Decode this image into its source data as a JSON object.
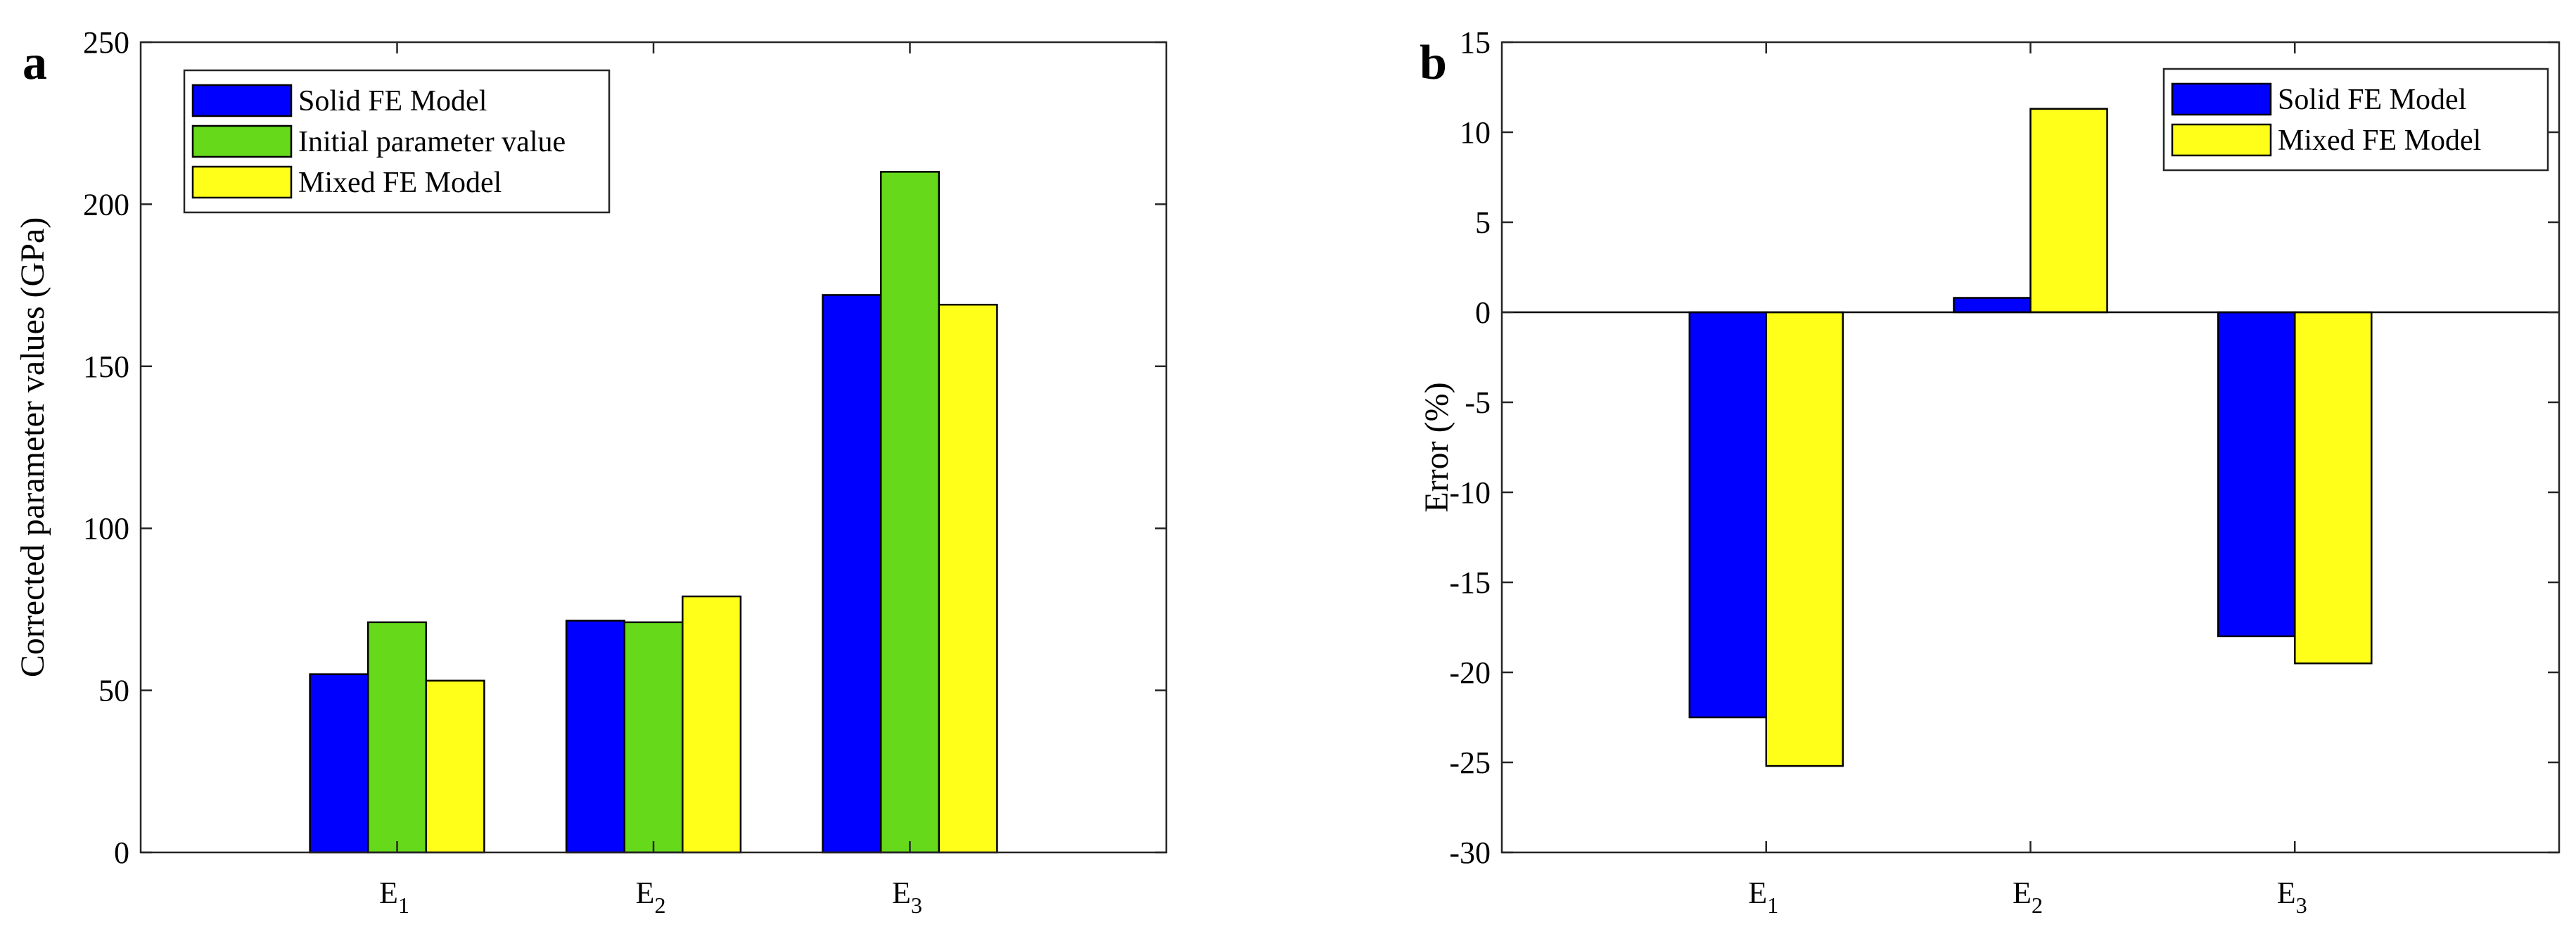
{
  "colors": {
    "solid": "#0000ff",
    "initial": "#66d91a",
    "mixed": "#ffff1a"
  },
  "chart_data": [
    {
      "type": "bar",
      "panel": "a",
      "categories": [
        {
          "base": "E",
          "sub": "1"
        },
        {
          "base": "E",
          "sub": "2"
        },
        {
          "base": "E",
          "sub": "3"
        }
      ],
      "series": [
        {
          "name": "Solid FE Model",
          "color_key": "solid",
          "values": [
            55,
            71.5,
            172
          ]
        },
        {
          "name": "Initial parameter value",
          "color_key": "initial",
          "values": [
            71,
            71,
            210
          ]
        },
        {
          "name": "Mixed FE Model",
          "color_key": "mixed",
          "values": [
            53,
            79,
            169
          ]
        }
      ],
      "ylabel": "Corrected parameter values (GPa)",
      "xlabel": "",
      "ylim": [
        0,
        250
      ],
      "yticks": [
        0,
        50,
        100,
        150,
        200,
        250
      ],
      "legend_location": "top-left",
      "grid": false
    },
    {
      "type": "bar",
      "panel": "b",
      "categories": [
        {
          "base": "E",
          "sub": "1"
        },
        {
          "base": "E",
          "sub": "2"
        },
        {
          "base": "E",
          "sub": "3"
        }
      ],
      "series": [
        {
          "name": "Solid FE Model",
          "color_key": "solid",
          "values": [
            -22.5,
            0.8,
            -18
          ]
        },
        {
          "name": "Mixed FE Model",
          "color_key": "mixed",
          "values": [
            -25.2,
            11.3,
            -19.5
          ]
        }
      ],
      "ylabel": "Error (%)",
      "xlabel": "",
      "ylim": [
        -30,
        15
      ],
      "yticks": [
        -30,
        -25,
        -20,
        -15,
        -10,
        -5,
        0,
        5,
        10,
        15
      ],
      "zero_line": true,
      "legend_location": "top-right",
      "grid": false
    }
  ]
}
